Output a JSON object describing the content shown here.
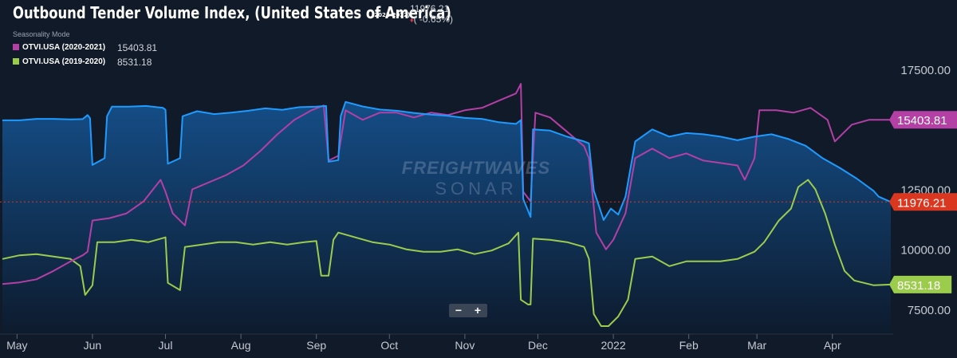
{
  "header": {
    "title": "Outbound Tender Volume Index, (United States of America)",
    "period": "(2021-2022)",
    "current_value": "11976.21",
    "change": "( -0.65%)",
    "change_arrow": "♦"
  },
  "legend": {
    "mode_label": "Seasonality Mode",
    "items": [
      {
        "name": "OTVI.USA (2020-2021)",
        "value": "15403.81",
        "color": "#b43fa5"
      },
      {
        "name": "OTVI.USA (2019-2020)",
        "value": "8531.18",
        "color": "#9ccc4c"
      }
    ]
  },
  "watermark": {
    "line1": "FREIGHTWAVES",
    "line2": "SONAR"
  },
  "zoom": {
    "minus": "−",
    "plus": "+"
  },
  "colors": {
    "current_series": "#1e9bff",
    "series_2020_2021": "#b43fa5",
    "series_2019_2020": "#9ccc4c",
    "current_tag": "#d9371f",
    "background": "#111a28"
  },
  "chart_data": {
    "type": "area",
    "title": "Outbound Tender Volume Index, (United States of America)",
    "x_axis": {
      "type": "date",
      "range": [
        "2021-04-25",
        "2022-04-25"
      ],
      "tick_labels": [
        "May",
        "Jun",
        "Jul",
        "Aug",
        "Sep",
        "Oct",
        "Nov",
        "Dec",
        "2022",
        "Feb",
        "Mar",
        "Apr"
      ],
      "tick_dates": [
        "2021-05-01",
        "2021-06-01",
        "2021-07-01",
        "2021-08-01",
        "2021-09-01",
        "2021-10-01",
        "2021-11-01",
        "2021-12-01",
        "2022-01-01",
        "2022-02-01",
        "2022-03-01",
        "2022-04-01"
      ]
    },
    "y_axis": {
      "position": "right",
      "range": [
        6500,
        19400
      ],
      "tick_labels": [
        "7500.00",
        "10000.00",
        "12500.00",
        "17500.00"
      ],
      "tick_values": [
        7500,
        10000,
        12500,
        17500
      ]
    },
    "grid": false,
    "legend_position": "top-left",
    "series": [
      {
        "name": "OTVI.USA (2021-2022)",
        "style": "area",
        "last_value": 11976.21,
        "points": [
          [
            "2021-04-25",
            15380
          ],
          [
            "2021-05-02",
            15380
          ],
          [
            "2021-05-09",
            15440
          ],
          [
            "2021-05-16",
            15440
          ],
          [
            "2021-05-23",
            15420
          ],
          [
            "2021-05-28",
            15430
          ],
          [
            "2021-05-30",
            15600
          ],
          [
            "2021-05-31",
            15470
          ],
          [
            "2021-06-01",
            13520
          ],
          [
            "2021-06-06",
            13800
          ],
          [
            "2021-06-07",
            15550
          ],
          [
            "2021-06-09",
            15950
          ],
          [
            "2021-06-16",
            15950
          ],
          [
            "2021-06-23",
            15980
          ],
          [
            "2021-06-30",
            15900
          ],
          [
            "2021-07-01",
            15820
          ],
          [
            "2021-07-02",
            13570
          ],
          [
            "2021-07-07",
            13800
          ],
          [
            "2021-07-08",
            15550
          ],
          [
            "2021-07-14",
            15760
          ],
          [
            "2021-07-21",
            15640
          ],
          [
            "2021-07-28",
            15700
          ],
          [
            "2021-08-04",
            15780
          ],
          [
            "2021-08-11",
            15880
          ],
          [
            "2021-08-18",
            15820
          ],
          [
            "2021-08-25",
            15930
          ],
          [
            "2021-09-01",
            15950
          ],
          [
            "2021-09-05",
            15980
          ],
          [
            "2021-09-06",
            13650
          ],
          [
            "2021-09-10",
            13720
          ],
          [
            "2021-09-11",
            15550
          ],
          [
            "2021-09-13",
            16150
          ],
          [
            "2021-09-20",
            15960
          ],
          [
            "2021-09-27",
            15830
          ],
          [
            "2021-10-04",
            15780
          ],
          [
            "2021-10-11",
            15690
          ],
          [
            "2021-10-18",
            15620
          ],
          [
            "2021-10-25",
            15570
          ],
          [
            "2021-11-01",
            15480
          ],
          [
            "2021-11-08",
            15440
          ],
          [
            "2021-11-15",
            15300
          ],
          [
            "2021-11-22",
            15230
          ],
          [
            "2021-11-24",
            15390
          ],
          [
            "2021-11-25",
            12100
          ],
          [
            "2021-11-28",
            11350
          ],
          [
            "2021-11-29",
            15000
          ],
          [
            "2021-12-06",
            14950
          ],
          [
            "2021-12-13",
            14700
          ],
          [
            "2021-12-20",
            14500
          ],
          [
            "2021-12-22",
            14420
          ],
          [
            "2021-12-24",
            12450
          ],
          [
            "2021-12-28",
            11220
          ],
          [
            "2021-12-31",
            11700
          ],
          [
            "2022-01-03",
            11450
          ],
          [
            "2022-01-06",
            12200
          ],
          [
            "2022-01-10",
            14500
          ],
          [
            "2022-01-17",
            15000
          ],
          [
            "2022-01-24",
            14700
          ],
          [
            "2022-01-31",
            14850
          ],
          [
            "2022-02-07",
            14800
          ],
          [
            "2022-02-14",
            14700
          ],
          [
            "2022-02-21",
            14550
          ],
          [
            "2022-02-28",
            14700
          ],
          [
            "2022-03-07",
            14800
          ],
          [
            "2022-03-14",
            14600
          ],
          [
            "2022-03-21",
            14320
          ],
          [
            "2022-03-28",
            13800
          ],
          [
            "2022-04-04",
            13400
          ],
          [
            "2022-04-11",
            12950
          ],
          [
            "2022-04-18",
            12430
          ],
          [
            "2022-04-20",
            12200
          ],
          [
            "2022-04-25",
            11976
          ]
        ]
      },
      {
        "name": "OTVI.USA (2020-2021)",
        "style": "line",
        "last_value": 15403.81,
        "points": [
          [
            "2021-04-25",
            8550
          ],
          [
            "2021-05-02",
            8620
          ],
          [
            "2021-05-09",
            8750
          ],
          [
            "2021-05-16",
            9100
          ],
          [
            "2021-05-23",
            9500
          ],
          [
            "2021-05-28",
            9750
          ],
          [
            "2021-05-30",
            9900
          ],
          [
            "2021-06-01",
            11200
          ],
          [
            "2021-06-08",
            11300
          ],
          [
            "2021-06-15",
            11500
          ],
          [
            "2021-06-22",
            12000
          ],
          [
            "2021-06-29",
            12900
          ],
          [
            "2021-07-01",
            12400
          ],
          [
            "2021-07-04",
            11500
          ],
          [
            "2021-07-09",
            11000
          ],
          [
            "2021-07-12",
            12500
          ],
          [
            "2021-07-19",
            12800
          ],
          [
            "2021-07-26",
            13100
          ],
          [
            "2021-08-02",
            13500
          ],
          [
            "2021-08-09",
            14100
          ],
          [
            "2021-08-16",
            14800
          ],
          [
            "2021-08-23",
            15400
          ],
          [
            "2021-08-30",
            15800
          ],
          [
            "2021-09-04",
            16000
          ],
          [
            "2021-09-06",
            13700
          ],
          [
            "2021-09-10",
            13900
          ],
          [
            "2021-09-13",
            15800
          ],
          [
            "2021-09-20",
            15400
          ],
          [
            "2021-09-27",
            15700
          ],
          [
            "2021-10-04",
            15700
          ],
          [
            "2021-10-11",
            15500
          ],
          [
            "2021-10-18",
            15700
          ],
          [
            "2021-10-25",
            15600
          ],
          [
            "2021-11-01",
            15800
          ],
          [
            "2021-11-08",
            15900
          ],
          [
            "2021-11-15",
            16200
          ],
          [
            "2021-11-22",
            16500
          ],
          [
            "2021-11-24",
            16900
          ],
          [
            "2021-11-25",
            12400
          ],
          [
            "2021-11-28",
            12000
          ],
          [
            "2021-11-30",
            15700
          ],
          [
            "2021-12-06",
            15500
          ],
          [
            "2021-12-13",
            14900
          ],
          [
            "2021-12-20",
            14300
          ],
          [
            "2021-12-22",
            13800
          ],
          [
            "2021-12-25",
            10700
          ],
          [
            "2021-12-29",
            10000
          ],
          [
            "2022-01-01",
            10400
          ],
          [
            "2022-01-06",
            11500
          ],
          [
            "2022-01-10",
            13800
          ],
          [
            "2022-01-17",
            14200
          ],
          [
            "2022-01-24",
            13800
          ],
          [
            "2022-01-31",
            14000
          ],
          [
            "2022-02-07",
            13700
          ],
          [
            "2022-02-14",
            13600
          ],
          [
            "2022-02-21",
            13500
          ],
          [
            "2022-02-24",
            12900
          ],
          [
            "2022-02-28",
            13800
          ],
          [
            "2022-03-02",
            15800
          ],
          [
            "2022-03-09",
            15800
          ],
          [
            "2022-03-16",
            15700
          ],
          [
            "2022-03-23",
            15900
          ],
          [
            "2022-03-30",
            15400
          ],
          [
            "2022-04-02",
            14500
          ],
          [
            "2022-04-09",
            15200
          ],
          [
            "2022-04-16",
            15400
          ],
          [
            "2022-04-23",
            15400
          ],
          [
            "2022-04-25",
            15404
          ]
        ]
      },
      {
        "name": "OTVI.USA (2019-2020)",
        "style": "line",
        "last_value": 8531.18,
        "points": [
          [
            "2021-04-25",
            9600
          ],
          [
            "2021-05-02",
            9750
          ],
          [
            "2021-05-09",
            9800
          ],
          [
            "2021-05-16",
            9700
          ],
          [
            "2021-05-23",
            9600
          ],
          [
            "2021-05-27",
            9300
          ],
          [
            "2021-05-29",
            8100
          ],
          [
            "2021-06-01",
            8500
          ],
          [
            "2021-06-03",
            10300
          ],
          [
            "2021-06-10",
            10300
          ],
          [
            "2021-06-17",
            10400
          ],
          [
            "2021-06-24",
            10300
          ],
          [
            "2021-07-01",
            10500
          ],
          [
            "2021-07-02",
            8600
          ],
          [
            "2021-07-07",
            8300
          ],
          [
            "2021-07-09",
            10100
          ],
          [
            "2021-07-16",
            10200
          ],
          [
            "2021-07-23",
            10300
          ],
          [
            "2021-07-30",
            10300
          ],
          [
            "2021-08-06",
            10200
          ],
          [
            "2021-08-13",
            10300
          ],
          [
            "2021-08-20",
            10200
          ],
          [
            "2021-08-27",
            10300
          ],
          [
            "2021-09-01",
            10350
          ],
          [
            "2021-09-03",
            8900
          ],
          [
            "2021-09-06",
            8900
          ],
          [
            "2021-09-08",
            10400
          ],
          [
            "2021-09-10",
            10700
          ],
          [
            "2021-09-17",
            10500
          ],
          [
            "2021-09-24",
            10300
          ],
          [
            "2021-10-01",
            10200
          ],
          [
            "2021-10-08",
            10000
          ],
          [
            "2021-10-15",
            9900
          ],
          [
            "2021-10-22",
            9900
          ],
          [
            "2021-10-29",
            10000
          ],
          [
            "2021-11-05",
            9800
          ],
          [
            "2021-11-12",
            9950
          ],
          [
            "2021-11-19",
            10250
          ],
          [
            "2021-11-23",
            10700
          ],
          [
            "2021-11-24",
            7900
          ],
          [
            "2021-11-27",
            7700
          ],
          [
            "2021-11-28",
            7700
          ],
          [
            "2021-11-29",
            10450
          ],
          [
            "2021-12-06",
            10400
          ],
          [
            "2021-12-13",
            10300
          ],
          [
            "2021-12-20",
            10100
          ],
          [
            "2021-12-22",
            9600
          ],
          [
            "2021-12-24",
            7300
          ],
          [
            "2021-12-27",
            6800
          ],
          [
            "2021-12-30",
            6800
          ],
          [
            "2022-01-03",
            7200
          ],
          [
            "2022-01-07",
            7900
          ],
          [
            "2022-01-10",
            9600
          ],
          [
            "2022-01-17",
            9700
          ],
          [
            "2022-01-24",
            9300
          ],
          [
            "2022-01-31",
            9500
          ],
          [
            "2022-02-07",
            9500
          ],
          [
            "2022-02-14",
            9500
          ],
          [
            "2022-02-21",
            9600
          ],
          [
            "2022-02-28",
            9900
          ],
          [
            "2022-03-04",
            10300
          ],
          [
            "2022-03-10",
            11200
          ],
          [
            "2022-03-15",
            11700
          ],
          [
            "2022-03-18",
            12600
          ],
          [
            "2022-03-22",
            12900
          ],
          [
            "2022-03-25",
            12500
          ],
          [
            "2022-03-29",
            11500
          ],
          [
            "2022-04-02",
            10200
          ],
          [
            "2022-04-06",
            9100
          ],
          [
            "2022-04-10",
            8700
          ],
          [
            "2022-04-14",
            8600
          ],
          [
            "2022-04-18",
            8500
          ],
          [
            "2022-04-25",
            8531
          ]
        ]
      }
    ],
    "tags": [
      {
        "label": "15403.81",
        "series": "OTVI.USA (2020-2021)",
        "color": "#b43fa5"
      },
      {
        "label": "11976.21",
        "series": "OTVI.USA (2021-2022)",
        "color": "#d9371f"
      },
      {
        "label": "8531.18",
        "series": "OTVI.USA (2019-2020)",
        "color": "#9ccc4c"
      }
    ]
  }
}
